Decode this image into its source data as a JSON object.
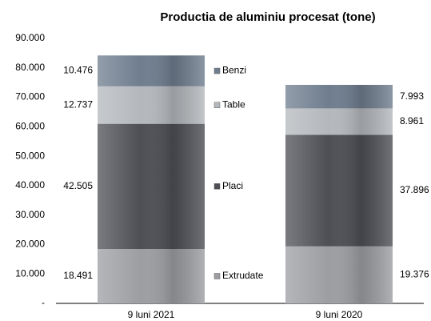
{
  "chart_data": {
    "type": "stacked_bar",
    "title": "Productia de aluminiu procesat (tone)",
    "categories": [
      "9 luni 2021",
      "9 luni 2020"
    ],
    "series": [
      {
        "name": "Extrudate",
        "color": "#9c9ea2",
        "values": [
          18491,
          19376
        ],
        "value_labels": [
          "18.491",
          "19.376"
        ]
      },
      {
        "name": "Placi",
        "color": "#4d4f55",
        "values": [
          42505,
          37896
        ],
        "value_labels": [
          "42.505",
          "37.896"
        ]
      },
      {
        "name": "Table",
        "color": "#b4b8bc",
        "values": [
          12737,
          8961
        ],
        "value_labels": [
          "12.737",
          "8.961"
        ]
      },
      {
        "name": "Benzi",
        "color": "#6f7d8e",
        "values": [
          10476,
          7993
        ],
        "value_labels": [
          "10.476",
          "7.993"
        ]
      }
    ],
    "ylim": [
      0,
      90000
    ],
    "yticks": [
      {
        "value": 0,
        "label": "-"
      },
      {
        "value": 10000,
        "label": "10.000"
      },
      {
        "value": 20000,
        "label": "20.000"
      },
      {
        "value": 30000,
        "label": "30.000"
      },
      {
        "value": 40000,
        "label": "40.000"
      },
      {
        "value": 50000,
        "label": "50.000"
      },
      {
        "value": 60000,
        "label": "60.000"
      },
      {
        "value": 70000,
        "label": "70.000"
      },
      {
        "value": 80000,
        "label": "80.000"
      },
      {
        "value": 90000,
        "label": "90.000"
      }
    ],
    "grid": false
  }
}
